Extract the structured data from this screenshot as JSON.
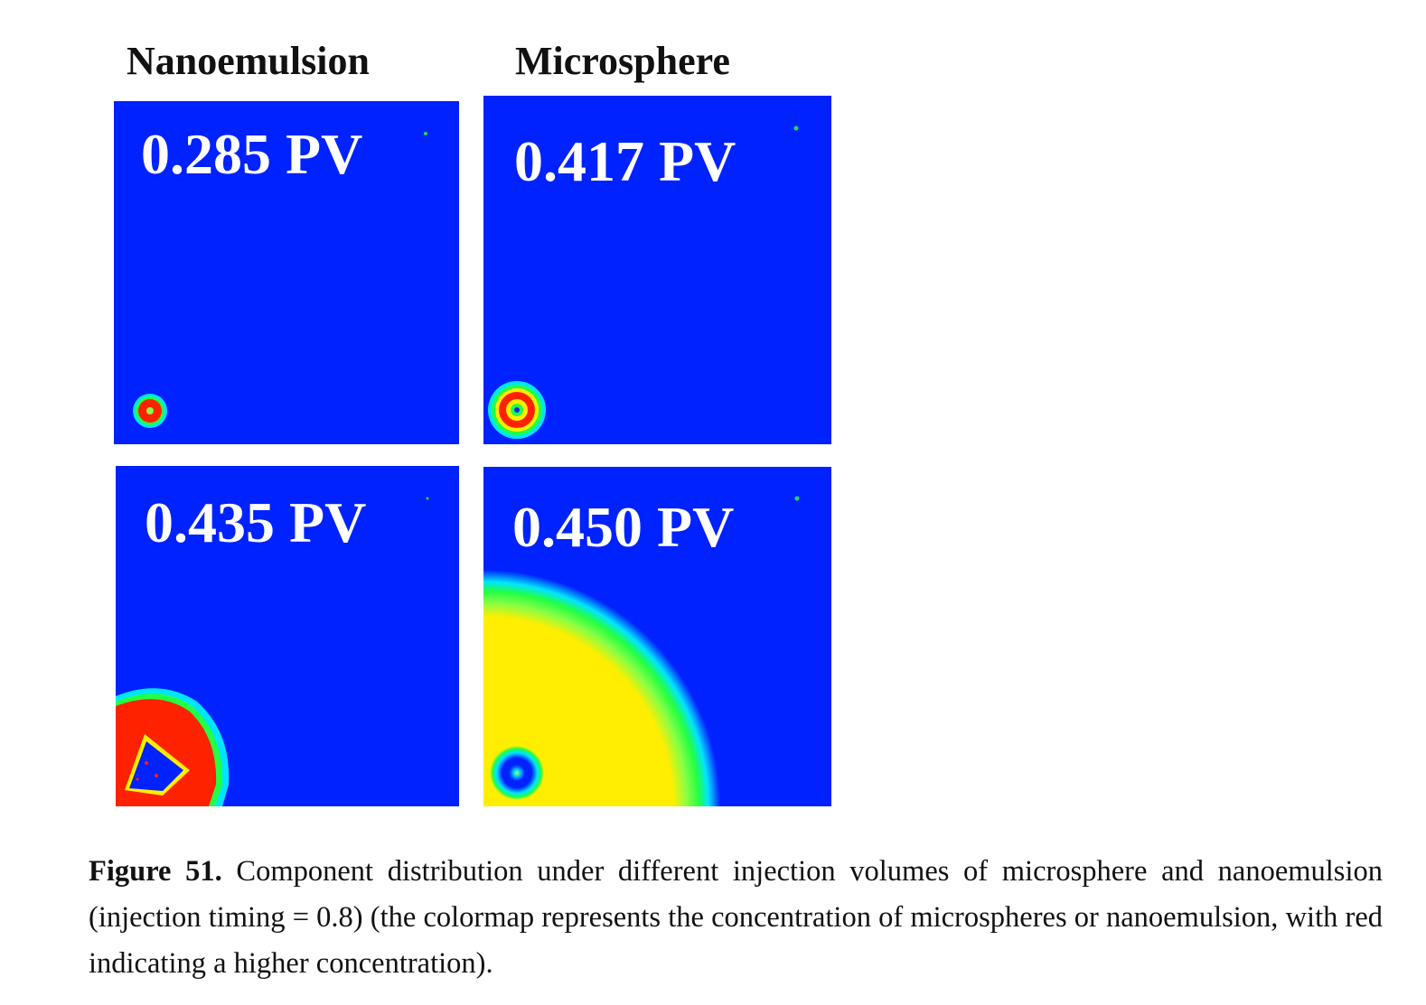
{
  "figure": {
    "columns": {
      "nanoemulsion": "Nanoemulsion",
      "microsphere": "Microsphere"
    },
    "panels": [
      {
        "label": "0.285 PV",
        "column": "Nanoemulsion"
      },
      {
        "label": "0.417 PV",
        "column": "Microsphere"
      },
      {
        "label": "0.435 PV",
        "column": "Nanoemulsion"
      },
      {
        "label": "0.450 PV",
        "column": "Microsphere"
      }
    ],
    "colors": {
      "background_blue": "#0022ff",
      "high_red": "#ff2200",
      "yellow": "#ffee00",
      "green": "#00ee33",
      "cyan": "#00e5ff"
    }
  },
  "caption": {
    "label": "Figure 51.",
    "text": " Component distribution under different injection volumes of microsphere and nanoemulsion (injection timing = 0.8) (the colormap represents the concentration of microspheres or nanoemulsion, with red indicating a higher concentration)."
  }
}
